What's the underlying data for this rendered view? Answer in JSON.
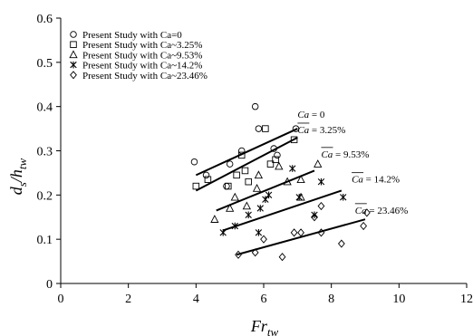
{
  "chart_data": {
    "type": "scatter",
    "xlabel": "Fr",
    "xlabel_sub": "tw",
    "ylabel": "d",
    "ylabel_sub_s": "s",
    "ylabel_sep": "/h",
    "ylabel_sub_tw": "tw",
    "xlim": [
      0,
      12
    ],
    "ylim": [
      0,
      0.6
    ],
    "xticks": [
      "0",
      "2",
      "4",
      "6",
      "8",
      "10",
      "12"
    ],
    "yticks": [
      "0",
      "0.1",
      "0.2",
      "0.3",
      "0.4",
      "0.5",
      "0.6"
    ],
    "grid": false,
    "legend_position": "top-left",
    "series": [
      {
        "name": "Present Study with Ca=0",
        "marker": "circle",
        "points": [
          [
            3.95,
            0.275
          ],
          [
            4.3,
            0.245
          ],
          [
            4.9,
            0.22
          ],
          [
            5.0,
            0.27
          ],
          [
            5.35,
            0.3
          ],
          [
            5.75,
            0.4
          ],
          [
            5.85,
            0.35
          ],
          [
            6.3,
            0.305
          ],
          [
            6.4,
            0.29
          ],
          [
            6.95,
            0.35
          ]
        ],
        "fit": [
          [
            4.0,
            0.245
          ],
          [
            7.0,
            0.35
          ]
        ]
      },
      {
        "name": "Present Study with Ca~3.25%",
        "marker": "square",
        "points": [
          [
            4.0,
            0.22
          ],
          [
            4.35,
            0.235
          ],
          [
            4.95,
            0.22
          ],
          [
            5.2,
            0.245
          ],
          [
            5.35,
            0.29
          ],
          [
            5.45,
            0.255
          ],
          [
            5.55,
            0.23
          ],
          [
            6.05,
            0.35
          ],
          [
            6.2,
            0.27
          ],
          [
            6.35,
            0.28
          ],
          [
            6.9,
            0.325
          ]
        ],
        "fit": [
          [
            4.0,
            0.21
          ],
          [
            7.0,
            0.33
          ]
        ]
      },
      {
        "name": "Present Study with Ca~9.53%",
        "marker": "triangle",
        "points": [
          [
            4.55,
            0.145
          ],
          [
            5.0,
            0.17
          ],
          [
            5.15,
            0.195
          ],
          [
            5.5,
            0.175
          ],
          [
            5.8,
            0.215
          ],
          [
            5.85,
            0.245
          ],
          [
            6.45,
            0.265
          ],
          [
            6.7,
            0.23
          ],
          [
            7.1,
            0.235
          ],
          [
            7.6,
            0.27
          ],
          [
            7.1,
            0.195
          ]
        ],
        "fit": [
          [
            4.6,
            0.165
          ],
          [
            7.5,
            0.255
          ]
        ]
      },
      {
        "name": "Present Study with Ca~14.2%",
        "marker": "star",
        "points": [
          [
            4.8,
            0.115
          ],
          [
            5.15,
            0.13
          ],
          [
            5.55,
            0.155
          ],
          [
            5.9,
            0.17
          ],
          [
            6.05,
            0.19
          ],
          [
            6.15,
            0.2
          ],
          [
            6.85,
            0.26
          ],
          [
            7.05,
            0.195
          ],
          [
            7.5,
            0.155
          ],
          [
            7.7,
            0.23
          ],
          [
            8.35,
            0.195
          ],
          [
            5.85,
            0.115
          ]
        ],
        "fit": [
          [
            4.8,
            0.12
          ],
          [
            8.3,
            0.21
          ]
        ]
      },
      {
        "name": "Present Study with Ca~23.46%",
        "marker": "diamond",
        "points": [
          [
            5.25,
            0.065
          ],
          [
            5.75,
            0.07
          ],
          [
            6.0,
            0.1
          ],
          [
            6.55,
            0.06
          ],
          [
            6.9,
            0.115
          ],
          [
            7.1,
            0.115
          ],
          [
            7.5,
            0.15
          ],
          [
            7.7,
            0.115
          ],
          [
            7.7,
            0.175
          ],
          [
            8.3,
            0.09
          ],
          [
            8.95,
            0.13
          ],
          [
            9.05,
            0.16
          ]
        ],
        "fit": [
          [
            5.2,
            0.065
          ],
          [
            9.0,
            0.145
          ]
        ]
      }
    ],
    "annotations": [
      {
        "text": "Ca = 0",
        "x": 7.0,
        "y": 0.375
      },
      {
        "text": "Ca = 3.25%",
        "x": 7.0,
        "y": 0.34
      },
      {
        "text": "Ca = 9.53%",
        "x": 7.7,
        "y": 0.285
      },
      {
        "text": "Ca = 14.2%",
        "x": 8.6,
        "y": 0.228
      },
      {
        "text": "Ca = 23.46%",
        "x": 8.7,
        "y": 0.158
      }
    ]
  }
}
